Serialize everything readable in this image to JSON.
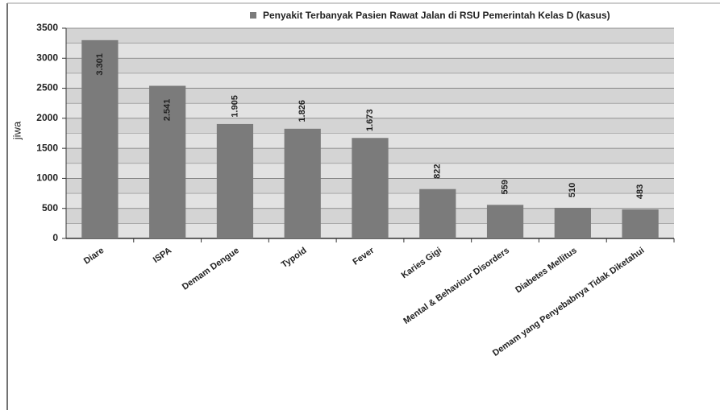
{
  "chart_data": {
    "type": "bar",
    "legend": "Penyakit Terbanyak Pasien Rawat Jalan di RSU Pemerintah Kelas D (kasus)",
    "ylabel": "jiwa",
    "categories": [
      "Diare",
      "ISPA",
      "Demam Dengue",
      "Typoid",
      "Fever",
      "Karies Gigi",
      "Mental & Behaviour Disorders",
      "Diabetes Mellitus",
      "Demam yang Penyebabnya Tidak Diketahui"
    ],
    "values": [
      3301,
      2541,
      1905,
      1826,
      1673,
      822,
      559,
      510,
      483
    ],
    "value_labels": [
      "3.301",
      "2.541",
      "1.905",
      "1.826",
      "1.673",
      "822",
      "559",
      "510",
      "483"
    ],
    "color": "#7b7b7b",
    "ylim": [
      0,
      3500
    ],
    "yticks": [
      0,
      500,
      1000,
      1500,
      2000,
      2500,
      3000,
      3500
    ],
    "grid": true
  }
}
